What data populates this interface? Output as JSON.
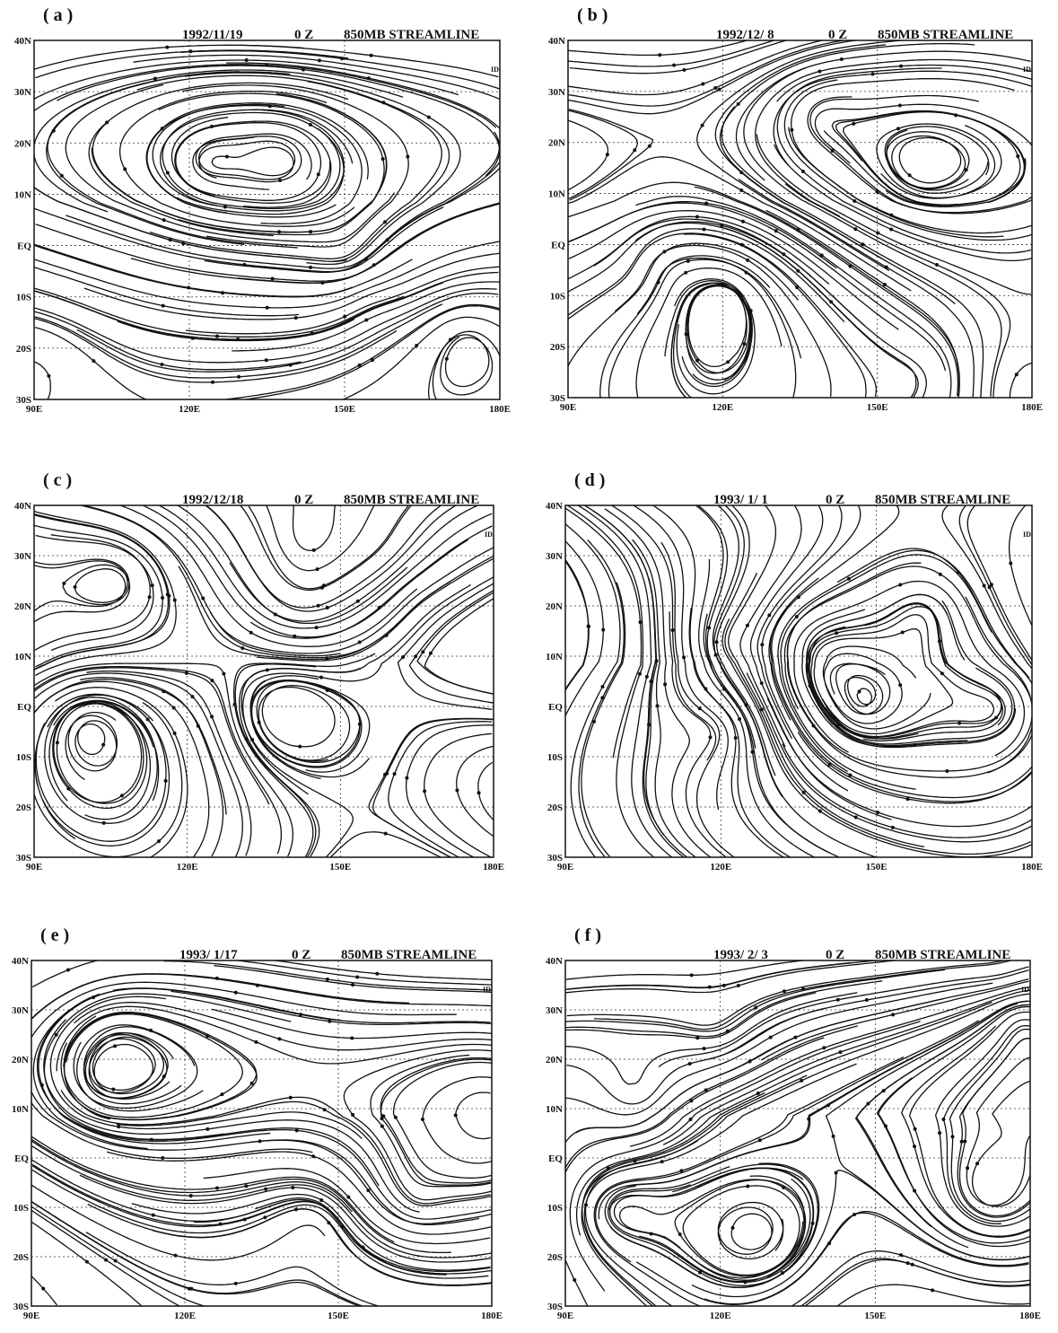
{
  "panels": [
    {
      "label": "( a )",
      "date": "1992/11/19",
      "time": "0 Z",
      "title": "850MB STREAMLINE",
      "corner_mark": "ID"
    },
    {
      "label": "( b )",
      "date": "1992/12/ 8",
      "time": "0 Z",
      "title": "850MB STREAMLINE",
      "corner_mark": "ID"
    },
    {
      "label": "( c )",
      "date": "1992/12/18",
      "time": "0 Z",
      "title": "850MB STREAMLINE",
      "corner_mark": "ID"
    },
    {
      "label": "( d )",
      "date": "1993/ 1/ 1",
      "time": "0 Z",
      "title": "850MB STREAMLINE",
      "corner_mark": "ID"
    },
    {
      "label": "( e )",
      "date": "1993/ 1/17",
      "time": "0 Z",
      "title": "850MB STREAMLINE",
      "corner_mark": "ID"
    },
    {
      "label": "( f )",
      "date": "1993/ 2/ 3",
      "time": "0 Z",
      "title": "850MB STREAMLINE",
      "corner_mark": "ID"
    }
  ],
  "axes": {
    "lat_labels": [
      "40N",
      "30N",
      "20N",
      "10N",
      "EQ",
      "10S",
      "20S",
      "30S"
    ],
    "lon_labels": [
      "90E",
      "120E",
      "150E",
      "180E"
    ]
  }
}
